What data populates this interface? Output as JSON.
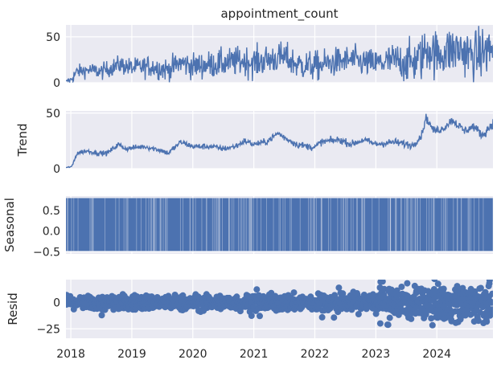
{
  "chart_data": {
    "type": "line",
    "title": "appointment_count",
    "x_tick_labels": [
      "2018",
      "2019",
      "2020",
      "2021",
      "2022",
      "2023",
      "2024"
    ],
    "x_range": [
      "2017-12-01",
      "2024-11-30"
    ],
    "grid": true,
    "colors": {
      "line": "#4c72b0",
      "panel_bg": "#eaeaf2",
      "grid": "#ffffff",
      "text": "#262626"
    },
    "panels": [
      {
        "key": "observed",
        "ylabel": "",
        "kind": "line",
        "ylim": [
          0,
          63
        ],
        "yticks": [
          0,
          50
        ],
        "ytick_labels": [
          "0",
          "50"
        ],
        "anchors": [
          [
            2017.92,
            2
          ],
          [
            2018.0,
            3
          ],
          [
            2018.1,
            12
          ],
          [
            2018.3,
            14
          ],
          [
            2018.5,
            12
          ],
          [
            2018.8,
            20
          ],
          [
            2019.0,
            16
          ],
          [
            2019.3,
            18
          ],
          [
            2019.6,
            14
          ],
          [
            2019.8,
            22
          ],
          [
            2020.0,
            18
          ],
          [
            2020.3,
            20
          ],
          [
            2020.6,
            22
          ],
          [
            2020.8,
            24
          ],
          [
            2021.0,
            22
          ],
          [
            2021.3,
            26
          ],
          [
            2021.5,
            28
          ],
          [
            2021.7,
            20
          ],
          [
            2022.0,
            18
          ],
          [
            2022.3,
            22
          ],
          [
            2022.6,
            25
          ],
          [
            2022.8,
            22
          ],
          [
            2023.0,
            21
          ],
          [
            2023.3,
            24
          ],
          [
            2023.6,
            22
          ],
          [
            2023.75,
            28
          ],
          [
            2023.85,
            38
          ],
          [
            2024.0,
            30
          ],
          [
            2024.2,
            35
          ],
          [
            2024.4,
            36
          ],
          [
            2024.6,
            28
          ],
          [
            2024.8,
            34
          ],
          [
            2024.92,
            38
          ]
        ],
        "noise_amplitude": [
          [
            2017.92,
            0
          ],
          [
            2018.05,
            5
          ],
          [
            2019.5,
            9
          ],
          [
            2021.0,
            12
          ],
          [
            2023.0,
            11
          ],
          [
            2023.7,
            18
          ],
          [
            2024.92,
            20
          ]
        ]
      },
      {
        "key": "trend",
        "ylabel": "Trend",
        "kind": "line",
        "ylim": [
          0,
          52
        ],
        "yticks": [
          0,
          50
        ],
        "ytick_labels": [
          "0",
          "50"
        ],
        "anchors": [
          [
            2017.92,
            1
          ],
          [
            2018.02,
            2
          ],
          [
            2018.1,
            14
          ],
          [
            2018.25,
            16
          ],
          [
            2018.45,
            14
          ],
          [
            2018.6,
            14
          ],
          [
            2018.78,
            22
          ],
          [
            2018.9,
            18
          ],
          [
            2019.2,
            20
          ],
          [
            2019.45,
            17
          ],
          [
            2019.6,
            14
          ],
          [
            2019.8,
            24
          ],
          [
            2020.0,
            20
          ],
          [
            2020.3,
            20
          ],
          [
            2020.5,
            18
          ],
          [
            2020.7,
            20
          ],
          [
            2020.85,
            25
          ],
          [
            2021.0,
            22
          ],
          [
            2021.2,
            24
          ],
          [
            2021.4,
            32
          ],
          [
            2021.5,
            28
          ],
          [
            2021.7,
            22
          ],
          [
            2021.9,
            20
          ],
          [
            2022.0,
            19
          ],
          [
            2022.1,
            24
          ],
          [
            2022.4,
            26
          ],
          [
            2022.6,
            22
          ],
          [
            2022.8,
            26
          ],
          [
            2023.0,
            22
          ],
          [
            2023.3,
            24
          ],
          [
            2023.6,
            21
          ],
          [
            2023.75,
            30
          ],
          [
            2023.82,
            46
          ],
          [
            2023.95,
            34
          ],
          [
            2024.1,
            36
          ],
          [
            2024.25,
            44
          ],
          [
            2024.45,
            34
          ],
          [
            2024.6,
            38
          ],
          [
            2024.75,
            30
          ],
          [
            2024.92,
            41
          ]
        ],
        "noise_amplitude": [
          [
            2017.92,
            0
          ],
          [
            2018.1,
            1.5
          ],
          [
            2023.7,
            2.5
          ],
          [
            2024.92,
            3
          ]
        ]
      },
      {
        "key": "seasonal",
        "ylabel": "Seasonal",
        "kind": "seasonal",
        "ylim": [
          -0.55,
          0.85
        ],
        "yticks": [
          -0.5,
          0.0,
          0.5
        ],
        "ytick_labels": [
          "−0.5",
          "0.0",
          "0.5"
        ],
        "seasonal_range": [
          -0.48,
          0.8
        ]
      },
      {
        "key": "resid",
        "ylabel": "Resid",
        "kind": "scatter",
        "ylim": [
          -34,
          22
        ],
        "yticks": [
          -25,
          0
        ],
        "ytick_labels": [
          "−25",
          "0"
        ],
        "spread": [
          [
            2017.92,
            3
          ],
          [
            2018.5,
            5
          ],
          [
            2020.5,
            5
          ],
          [
            2022.5,
            6
          ],
          [
            2023.5,
            10
          ],
          [
            2024.92,
            14
          ]
        ]
      }
    ]
  }
}
